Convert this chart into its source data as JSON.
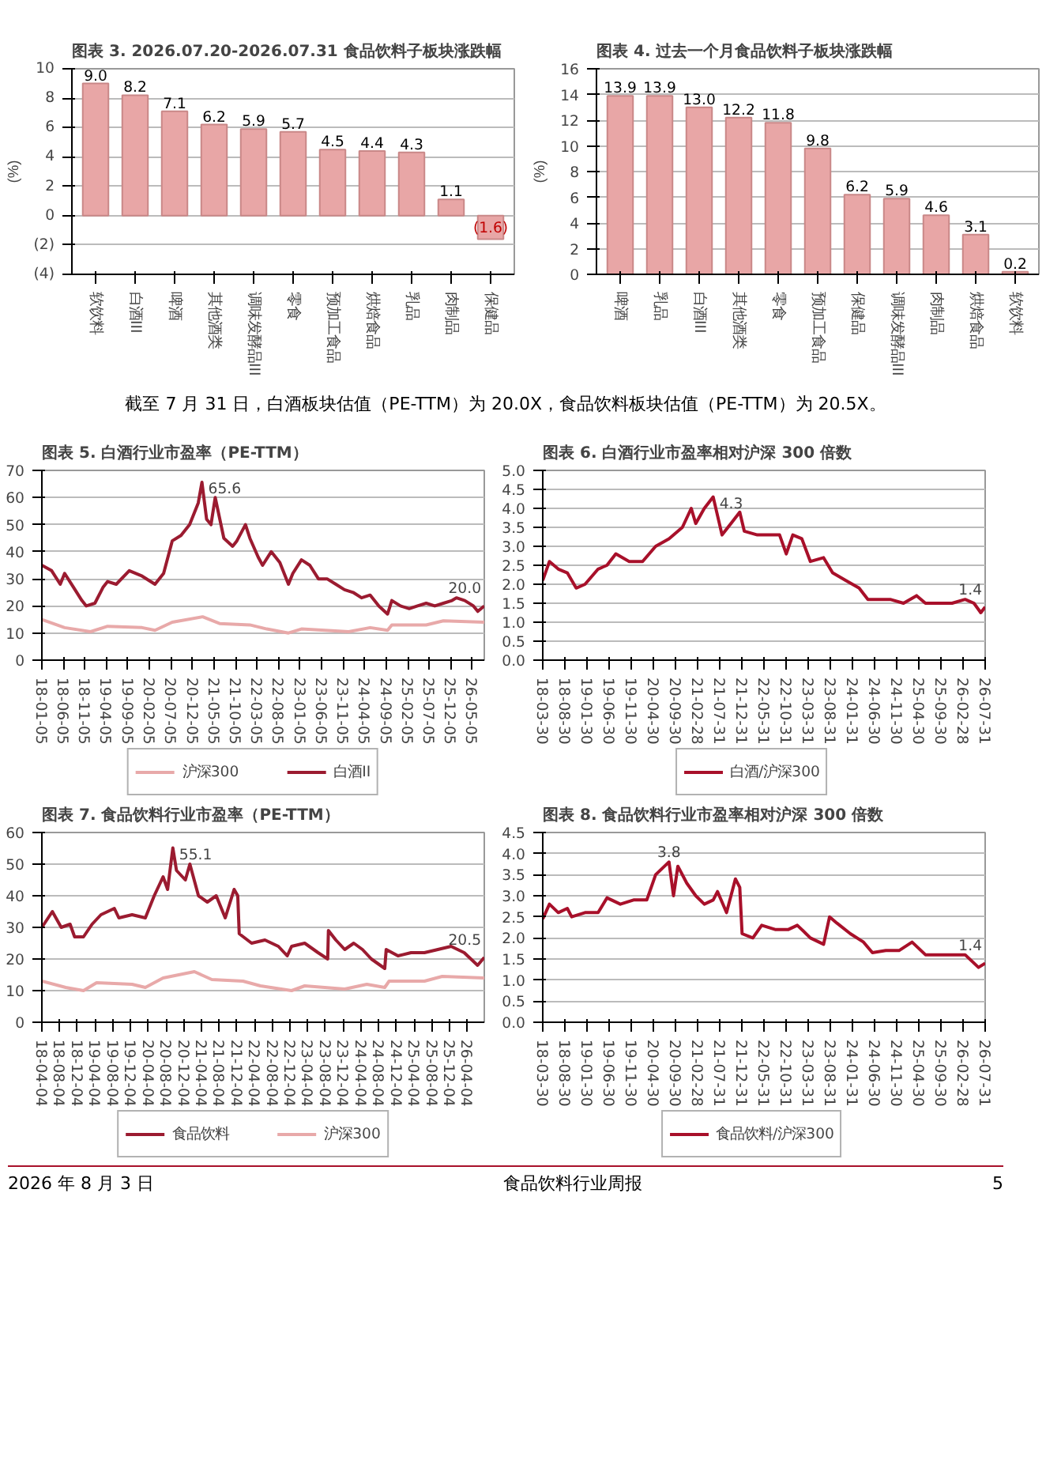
{
  "chart_data": [
    {
      "type": "bar",
      "title": "图表 3. 2026.07.20-2026.07.31 食品饮料子板块涨跌幅",
      "ylabel": "(%)",
      "categories": [
        "软饮料",
        "白酒III",
        "啤酒",
        "其他酒类",
        "调味发酵品III",
        "零食",
        "预加工食品",
        "烘焙食品",
        "乳品",
        "肉制品",
        "保健品"
      ],
      "values": [
        9.0,
        8.2,
        7.1,
        6.2,
        5.9,
        5.7,
        4.5,
        4.4,
        4.3,
        1.1,
        -1.6
      ],
      "value_labels": [
        "9.0",
        "8.2",
        "7.1",
        "6.2",
        "5.9",
        "5.7",
        "4.5",
        "4.4",
        "4.3",
        "1.1",
        "(1.6)"
      ],
      "color": "#e8a6a6",
      "ylim": [
        -4,
        10
      ],
      "yticks": [
        {
          "value": -4,
          "label": "(4)"
        },
        {
          "value": -2,
          "label": "(2)"
        },
        0,
        2,
        4,
        6,
        8,
        10
      ],
      "grid": "y"
    },
    {
      "type": "bar",
      "title": "图表 4. 过去一个月食品饮料子板块涨跌幅",
      "ylabel": "(%)",
      "categories": [
        "啤酒",
        "乳品",
        "白酒III",
        "其他酒类",
        "零食",
        "预加工食品",
        "保健品",
        "调味发酵品III",
        "肉制品",
        "烘焙食品",
        "软饮料"
      ],
      "values": [
        13.9,
        13.9,
        13.0,
        12.2,
        11.8,
        9.8,
        6.2,
        5.9,
        4.6,
        3.1,
        0.2
      ],
      "value_labels": [
        "13.9",
        "13.9",
        "13.0",
        "12.2",
        "11.8",
        "9.8",
        "6.2",
        "5.9",
        "4.6",
        "3.1",
        "0.2"
      ],
      "color": "#e8a6a6",
      "ylim": [
        0,
        16
      ],
      "yticks": [
        0,
        2,
        4,
        6,
        8,
        10,
        12,
        14,
        16
      ],
      "grid": "y",
      "annotations": [
        "截至 7 月 31 日，白酒板块估值（PE-TTM）为 20.0X，食品饮料板块估值（PE-TTM）为 20.5X。"
      ]
    },
    {
      "type": "line",
      "title": "图表 5. 白酒行业市盈率（PE-TTM）",
      "xlim": [
        "2018-01-05",
        "2026-07-31"
      ],
      "ylim": [
        0,
        70
      ],
      "yticks": [
        0,
        10,
        20,
        30,
        40,
        50,
        60,
        70
      ],
      "grid": "y",
      "legend": "bottom",
      "xticks": [
        {
          "value": "2018-01-05",
          "label": "18-01-05"
        },
        {
          "value": "2018-06-05",
          "label": "18-06-05"
        },
        {
          "value": "2018-11-05",
          "label": "18-11-05"
        },
        {
          "value": "2019-04-05",
          "label": "19-04-05"
        },
        {
          "value": "2019-09-05",
          "label": "19-09-05"
        },
        {
          "value": "2020-02-05",
          "label": "20-02-05"
        },
        {
          "value": "2020-07-05",
          "label": "20-07-05"
        },
        {
          "value": "2020-12-05",
          "label": "20-12-05"
        },
        {
          "value": "2021-05-05",
          "label": "21-05-05"
        },
        {
          "value": "2021-10-05",
          "label": "21-10-05"
        },
        {
          "value": "2022-03-05",
          "label": "22-03-05"
        },
        {
          "value": "2022-08-05",
          "label": "22-08-05"
        },
        {
          "value": "2023-01-05",
          "label": "23-01-05"
        },
        {
          "value": "2023-06-05",
          "label": "23-06-05"
        },
        {
          "value": "2023-11-05",
          "label": "23-11-05"
        },
        {
          "value": "2024-04-05",
          "label": "24-04-05"
        },
        {
          "value": "2024-09-05",
          "label": "24-09-05"
        },
        {
          "value": "2025-02-05",
          "label": "25-02-05"
        },
        {
          "value": "2025-07-05",
          "label": "25-07-05"
        },
        {
          "value": "2025-12-05",
          "label": "25-12-05"
        },
        {
          "value": "2026-05-05",
          "label": "26-05-05"
        }
      ],
      "series": [
        {
          "name": "沪深300",
          "color": "#e8a9a9",
          "x": [
            "2018-01-05",
            "2018-06-15",
            "2018-12-15",
            "2019-04-15",
            "2019-12-15",
            "2020-03-15",
            "2020-07-15",
            "2021-02-15",
            "2021-06-15",
            "2022-01-15",
            "2022-05-15",
            "2022-10-15",
            "2023-01-15",
            "2023-12-15",
            "2024-05-15",
            "2024-09-15",
            "2024-10-15",
            "2025-06-15",
            "2025-10-15",
            "2026-07-31"
          ],
          "values": [
            15,
            12,
            10.5,
            12.5,
            12,
            11,
            14,
            16,
            13.5,
            13,
            11.5,
            10,
            11.5,
            10.5,
            12,
            11,
            13,
            13,
            14.5,
            14
          ]
        },
        {
          "name": "白酒II",
          "color": "#9b1b30",
          "x": [
            "2018-01-05",
            "2018-03-15",
            "2018-05-15",
            "2018-06-15",
            "2018-08-15",
            "2018-10-15",
            "2018-11-15",
            "2019-01-15",
            "2019-03-15",
            "2019-04-15",
            "2019-06-15",
            "2019-09-15",
            "2019-12-15",
            "2020-03-15",
            "2020-05-15",
            "2020-07-15",
            "2020-09-15",
            "2020-11-15",
            "2021-01-15",
            "2021-02-10",
            "2021-03-15",
            "2021-04-15",
            "2021-05-15",
            "2021-07-15",
            "2021-09-15",
            "2021-10-15",
            "2021-12-15",
            "2022-01-15",
            "2022-03-15",
            "2022-04-15",
            "2022-06-15",
            "2022-08-15",
            "2022-10-15",
            "2022-11-15",
            "2023-01-15",
            "2023-03-15",
            "2023-05-15",
            "2023-07-15",
            "2023-09-15",
            "2023-11-15",
            "2024-01-15",
            "2024-03-15",
            "2024-05-15",
            "2024-07-15",
            "2024-09-15",
            "2024-10-15",
            "2024-12-15",
            "2025-02-15",
            "2025-04-15",
            "2025-06-15",
            "2025-08-15",
            "2025-10-15",
            "2025-12-15",
            "2026-01-15",
            "2026-03-15",
            "2026-05-15",
            "2026-06-15",
            "2026-07-31"
          ],
          "values": [
            35,
            33,
            28,
            32,
            27,
            22,
            20,
            21,
            27,
            29,
            28,
            33,
            31,
            28,
            32,
            44,
            46,
            50,
            58,
            65.6,
            52,
            50,
            60,
            45,
            42,
            44,
            50,
            45,
            38,
            35,
            40,
            36,
            28,
            32,
            37,
            35,
            30,
            30,
            28,
            26,
            25,
            23,
            24,
            20,
            17,
            22,
            20,
            19,
            20,
            21,
            20,
            21,
            22,
            23,
            22,
            20,
            18,
            20.0
          ]
        }
      ],
      "annotations": [
        {
          "text": "65.6",
          "x": "2021-02-10",
          "y": 65.6
        },
        {
          "text": "20.0",
          "x": "2026-07-31",
          "y": 20.0
        }
      ]
    },
    {
      "type": "line",
      "title": "图表 6. 白酒行业市盈率相对沪深 300 倍数",
      "xlim": [
        "2018-03-30",
        "2026-07-31"
      ],
      "ylim": [
        0,
        5
      ],
      "yticks": [
        {
          "value": 0,
          "label": "0.0"
        },
        {
          "value": 0.5,
          "label": "0.5"
        },
        {
          "value": 1,
          "label": "1.0"
        },
        {
          "value": 1.5,
          "label": "1.5"
        },
        {
          "value": 2,
          "label": "2.0"
        },
        {
          "value": 2.5,
          "label": "2.5"
        },
        {
          "value": 3,
          "label": "3.0"
        },
        {
          "value": 3.5,
          "label": "3.5"
        },
        {
          "value": 4,
          "label": "4.0"
        },
        {
          "value": 4.5,
          "label": "4.5"
        },
        {
          "value": 5,
          "label": "5.0"
        }
      ],
      "grid": "y",
      "legend": "bottom",
      "xticks": [
        {
          "value": "2018-03-30",
          "label": "18-03-30"
        },
        {
          "value": "2018-08-30",
          "label": "18-08-30"
        },
        {
          "value": "2019-01-30",
          "label": "19-01-30"
        },
        {
          "value": "2019-06-30",
          "label": "19-06-30"
        },
        {
          "value": "2019-11-30",
          "label": "19-11-30"
        },
        {
          "value": "2020-04-30",
          "label": "20-04-30"
        },
        {
          "value": "2020-09-30",
          "label": "20-09-30"
        },
        {
          "value": "2021-02-28",
          "label": "21-02-28"
        },
        {
          "value": "2021-07-31",
          "label": "21-07-31"
        },
        {
          "value": "2021-12-31",
          "label": "21-12-31"
        },
        {
          "value": "2022-05-31",
          "label": "22-05-31"
        },
        {
          "value": "2022-10-31",
          "label": "22-10-31"
        },
        {
          "value": "2023-03-31",
          "label": "23-03-31"
        },
        {
          "value": "2023-08-31",
          "label": "23-08-31"
        },
        {
          "value": "2024-01-31",
          "label": "24-01-31"
        },
        {
          "value": "2024-06-30",
          "label": "24-06-30"
        },
        {
          "value": "2024-11-30",
          "label": "24-11-30"
        },
        {
          "value": "2025-04-30",
          "label": "25-04-30"
        },
        {
          "value": "2025-09-30",
          "label": "25-09-30"
        },
        {
          "value": "2026-02-28",
          "label": "26-02-28"
        },
        {
          "value": "2026-07-31",
          "label": "26-07-31"
        }
      ],
      "series": [
        {
          "name": "白酒/沪深300",
          "color": "#a8102a",
          "x": [
            "2018-03-30",
            "2018-05-15",
            "2018-07-15",
            "2018-09-15",
            "2018-11-15",
            "2019-01-15",
            "2019-04-15",
            "2019-06-15",
            "2019-08-15",
            "2019-11-15",
            "2020-02-15",
            "2020-05-15",
            "2020-08-15",
            "2020-11-15",
            "2021-01-15",
            "2021-02-15",
            "2021-04-15",
            "2021-06-15",
            "2021-08-15",
            "2021-10-15",
            "2021-12-15",
            "2022-01-15",
            "2022-04-15",
            "2022-07-15",
            "2022-09-15",
            "2022-10-31",
            "2022-12-15",
            "2023-02-15",
            "2023-04-15",
            "2023-07-15",
            "2023-09-15",
            "2023-12-15",
            "2024-03-15",
            "2024-05-15",
            "2024-07-15",
            "2024-10-15",
            "2025-01-15",
            "2025-04-15",
            "2025-06-15",
            "2025-09-15",
            "2025-12-15",
            "2026-03-15",
            "2026-05-15",
            "2026-07-01",
            "2026-07-31"
          ],
          "values": [
            2.1,
            2.6,
            2.4,
            2.3,
            1.9,
            2.0,
            2.4,
            2.5,
            2.8,
            2.6,
            2.6,
            3.0,
            3.2,
            3.5,
            4.0,
            3.6,
            4.0,
            4.3,
            3.3,
            3.6,
            3.9,
            3.4,
            3.3,
            3.3,
            3.3,
            2.8,
            3.3,
            3.2,
            2.6,
            2.7,
            2.3,
            2.1,
            1.9,
            1.6,
            1.6,
            1.6,
            1.5,
            1.7,
            1.5,
            1.5,
            1.5,
            1.6,
            1.5,
            1.25,
            1.4
          ]
        }
      ],
      "annotations": [
        {
          "text": "4.3",
          "x": "2021-06-15",
          "y": 4.3
        },
        {
          "text": "1.4",
          "x": "2026-07-31",
          "y": 1.4
        }
      ]
    },
    {
      "type": "line",
      "title": "图表 7. 食品饮料行业市盈率（PE-TTM）",
      "xlim": [
        "2018-04-04",
        "2026-07-31"
      ],
      "ylim": [
        0,
        60
      ],
      "yticks": [
        0,
        10,
        20,
        30,
        40,
        50,
        60
      ],
      "grid": "y",
      "legend": "bottom",
      "xticks": [
        {
          "value": "2018-04-04",
          "label": "18-04-04"
        },
        {
          "value": "2018-08-04",
          "label": "18-08-04"
        },
        {
          "value": "2018-12-04",
          "label": "18-12-04"
        },
        {
          "value": "2019-04-04",
          "label": "19-04-04"
        },
        {
          "value": "2019-08-04",
          "label": "19-08-04"
        },
        {
          "value": "2019-12-04",
          "label": "19-12-04"
        },
        {
          "value": "2020-04-04",
          "label": "20-04-04"
        },
        {
          "value": "2020-08-04",
          "label": "20-08-04"
        },
        {
          "value": "2020-12-04",
          "label": "20-12-04"
        },
        {
          "value": "2021-04-04",
          "label": "21-04-04"
        },
        {
          "value": "2021-08-04",
          "label": "21-08-04"
        },
        {
          "value": "2021-12-04",
          "label": "21-12-04"
        },
        {
          "value": "2022-04-04",
          "label": "22-04-04"
        },
        {
          "value": "2022-08-04",
          "label": "22-08-04"
        },
        {
          "value": "2022-12-04",
          "label": "22-12-04"
        },
        {
          "value": "2023-04-04",
          "label": "23-04-04"
        },
        {
          "value": "2023-08-04",
          "label": "23-08-04"
        },
        {
          "value": "2023-12-04",
          "label": "23-12-04"
        },
        {
          "value": "2024-04-04",
          "label": "24-04-04"
        },
        {
          "value": "2024-08-04",
          "label": "24-08-04"
        },
        {
          "value": "2024-12-04",
          "label": "24-12-04"
        },
        {
          "value": "2025-04-04",
          "label": "25-04-04"
        },
        {
          "value": "2025-08-04",
          "label": "25-08-04"
        },
        {
          "value": "2025-12-04",
          "label": "25-12-04"
        },
        {
          "value": "2026-04-04",
          "label": "26-04-04"
        }
      ],
      "series": [
        {
          "name": "食品饮料",
          "color": "#9b1b30",
          "x": [
            "2018-04-04",
            "2018-06-15",
            "2018-08-15",
            "2018-10-15",
            "2018-11-15",
            "2019-01-15",
            "2019-03-15",
            "2019-05-15",
            "2019-08-15",
            "2019-09-15",
            "2019-12-15",
            "2020-03-15",
            "2020-05-15",
            "2020-07-15",
            "2020-08-15",
            "2020-09-20",
            "2020-10-15",
            "2020-12-15",
            "2021-01-15",
            "2021-03-15",
            "2021-05-15",
            "2021-07-15",
            "2021-09-15",
            "2021-11-15",
            "2021-12-10",
            "2021-12-20",
            "2022-03-15",
            "2022-06-15",
            "2022-09-15",
            "2022-11-15",
            "2022-12-15",
            "2023-03-15",
            "2023-06-15",
            "2023-08-20",
            "2023-08-25",
            "2023-10-15",
            "2023-12-15",
            "2024-02-15",
            "2024-04-15",
            "2024-06-15",
            "2024-09-15",
            "2024-09-25",
            "2024-12-15",
            "2025-03-15",
            "2025-06-15",
            "2025-09-15",
            "2025-12-15",
            "2026-03-15",
            "2026-06-15",
            "2026-07-31"
          ],
          "values": [
            30,
            35,
            30,
            31,
            27,
            27,
            31,
            34,
            36,
            33,
            34,
            33,
            40,
            46,
            42,
            55.1,
            48,
            45,
            50,
            40,
            38,
            40,
            33,
            42,
            40,
            28,
            25,
            26,
            24,
            21,
            24,
            25,
            22,
            20,
            29,
            26,
            23,
            25,
            23,
            20,
            17,
            23,
            21,
            22,
            22,
            23,
            24,
            22,
            18,
            20.5
          ]
        },
        {
          "name": "沪深300",
          "color": "#e8a9a9",
          "x": [
            "2018-04-04",
            "2018-09-15",
            "2019-01-15",
            "2019-04-15",
            "2019-12-15",
            "2020-03-15",
            "2020-07-15",
            "2021-02-15",
            "2021-06-15",
            "2022-01-15",
            "2022-05-15",
            "2022-12-15",
            "2023-03-15",
            "2023-12-15",
            "2024-05-15",
            "2024-09-15",
            "2024-10-15",
            "2025-06-15",
            "2025-10-15",
            "2026-07-31"
          ],
          "values": [
            13,
            11,
            10,
            12.5,
            12,
            11,
            14,
            16,
            13.5,
            13,
            11.5,
            10,
            11.5,
            10.5,
            12,
            11,
            13,
            13,
            14.5,
            14
          ]
        }
      ],
      "annotations": [
        {
          "text": "55.1",
          "x": "2020-09-20",
          "y": 55.1
        },
        {
          "text": "20.5",
          "x": "2026-07-31",
          "y": 20.5
        }
      ]
    },
    {
      "type": "line",
      "title": "图表 8. 食品饮料行业市盈率相对沪深 300 倍数",
      "xlim": [
        "2018-03-30",
        "2026-07-31"
      ],
      "ylim": [
        0,
        4.5
      ],
      "yticks": [
        {
          "value": 0,
          "label": "0.0"
        },
        {
          "value": 0.5,
          "label": "0.5"
        },
        {
          "value": 1,
          "label": "1.0"
        },
        {
          "value": 1.5,
          "label": "1.5"
        },
        {
          "value": 2,
          "label": "2.0"
        },
        {
          "value": 2.5,
          "label": "2.5"
        },
        {
          "value": 3,
          "label": "3.0"
        },
        {
          "value": 3.5,
          "label": "3.5"
        },
        {
          "value": 4,
          "label": "4.0"
        },
        {
          "value": 4.5,
          "label": "4.5"
        }
      ],
      "grid": "y",
      "legend": "bottom",
      "xticks": [
        {
          "value": "2018-03-30",
          "label": "18-03-30"
        },
        {
          "value": "2018-08-30",
          "label": "18-08-30"
        },
        {
          "value": "2019-01-30",
          "label": "19-01-30"
        },
        {
          "value": "2019-06-30",
          "label": "19-06-30"
        },
        {
          "value": "2019-11-30",
          "label": "19-11-30"
        },
        {
          "value": "2020-04-30",
          "label": "20-04-30"
        },
        {
          "value": "2020-09-30",
          "label": "20-09-30"
        },
        {
          "value": "2021-02-28",
          "label": "21-02-28"
        },
        {
          "value": "2021-07-31",
          "label": "21-07-31"
        },
        {
          "value": "2021-12-31",
          "label": "21-12-31"
        },
        {
          "value": "2022-05-31",
          "label": "22-05-31"
        },
        {
          "value": "2022-10-31",
          "label": "22-10-31"
        },
        {
          "value": "2023-03-31",
          "label": "23-03-31"
        },
        {
          "value": "2023-08-31",
          "label": "23-08-31"
        },
        {
          "value": "2024-01-31",
          "label": "24-01-31"
        },
        {
          "value": "2024-06-30",
          "label": "24-06-30"
        },
        {
          "value": "2024-11-30",
          "label": "24-11-30"
        },
        {
          "value": "2025-04-30",
          "label": "25-04-30"
        },
        {
          "value": "2025-09-30",
          "label": "25-09-30"
        },
        {
          "value": "2026-02-28",
          "label": "26-02-28"
        },
        {
          "value": "2026-07-31",
          "label": "26-07-31"
        }
      ],
      "series": [
        {
          "name": "食品饮料/沪深300",
          "color": "#a8102a",
          "x": [
            "2018-03-30",
            "2018-05-15",
            "2018-07-15",
            "2018-09-15",
            "2018-10-15",
            "2019-01-15",
            "2019-04-15",
            "2019-06-15",
            "2019-09-15",
            "2019-12-15",
            "2020-03-15",
            "2020-05-15",
            "2020-07-15",
            "2020-08-15",
            "2020-09-15",
            "2020-10-15",
            "2020-12-15",
            "2021-02-15",
            "2021-04-15",
            "2021-06-15",
            "2021-07-15",
            "2021-09-15",
            "2021-11-15",
            "2021-12-15",
            "2021-12-31",
            "2022-03-15",
            "2022-05-15",
            "2022-08-15",
            "2022-11-15",
            "2023-01-15",
            "2023-04-15",
            "2023-07-15",
            "2023-08-25",
            "2023-10-15",
            "2024-01-15",
            "2024-04-15",
            "2024-06-15",
            "2024-09-15",
            "2024-12-15",
            "2025-03-15",
            "2025-06-15",
            "2025-09-15",
            "2025-12-15",
            "2026-03-15",
            "2026-06-15",
            "2026-07-31"
          ],
          "values": [
            2.45,
            2.8,
            2.6,
            2.7,
            2.5,
            2.6,
            2.6,
            2.95,
            2.8,
            2.9,
            2.9,
            3.5,
            3.7,
            3.8,
            3.0,
            3.7,
            3.3,
            3.0,
            2.8,
            2.9,
            3.1,
            2.6,
            3.4,
            3.2,
            2.1,
            2.0,
            2.3,
            2.2,
            2.2,
            2.3,
            2.0,
            1.85,
            2.5,
            2.35,
            2.1,
            1.9,
            1.65,
            1.7,
            1.7,
            1.9,
            1.6,
            1.6,
            1.6,
            1.6,
            1.3,
            1.4
          ]
        }
      ],
      "annotations": [
        {
          "text": "3.8",
          "x": "2020-08-15",
          "y": 3.8
        },
        {
          "text": "1.4",
          "x": "2026-07-31",
          "y": 1.4
        },
        "2026 年 8 月 3 日",
        "食品饮料行业周报",
        "5"
      ]
    }
  ]
}
